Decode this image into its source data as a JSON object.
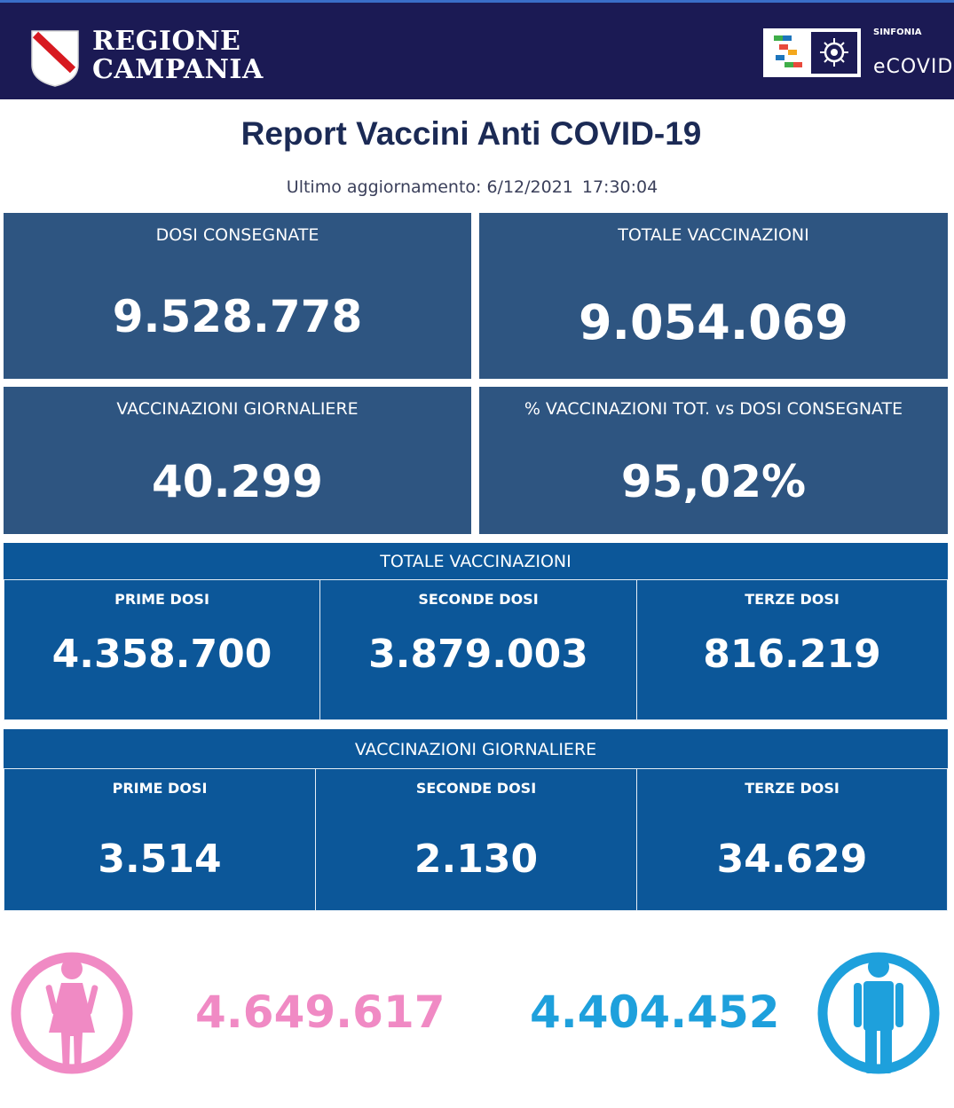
{
  "header": {
    "region_line1": "REGIONE",
    "region_line2": "CAMPANIA",
    "sinfonia": "SINFONIA",
    "ecovid": "eCOVID"
  },
  "title": "Report Vaccini Anti COVID-19",
  "updated": {
    "label": "Ultimo aggiornamento: 6/12/2021",
    "time": "17:30:04"
  },
  "cards": {
    "dosi_consegnate": {
      "label": "DOSI  CONSEGNATE",
      "value": "9.528.778"
    },
    "totale_vaccinazioni": {
      "label": "TOTALE VACCINAZIONI",
      "value": "9.054.069"
    },
    "vaccinazioni_giornaliere": {
      "label": "VACCINAZIONI GIORNALIERE",
      "value": "40.299"
    },
    "percentuale": {
      "label": "% VACCINAZIONI TOT. vs DOSI CONSEGNATE",
      "value": "95,02%"
    }
  },
  "totale": {
    "title": "TOTALE VACCINAZIONI",
    "prime": {
      "label": "PRIME DOSI",
      "value": "4.358.700"
    },
    "seconde": {
      "label": "SECONDE DOSI",
      "value": "3.879.003"
    },
    "terze": {
      "label": "TERZE DOSI",
      "value": "816.219"
    }
  },
  "giornaliere": {
    "title": "VACCINAZIONI GIORNALIERE",
    "prime": {
      "label": "PRIME DOSI",
      "value": "3.514"
    },
    "seconde": {
      "label": "SECONDE DOSI",
      "value": "2.130"
    },
    "terze": {
      "label": "TERZE DOSI",
      "value": "34.629"
    }
  },
  "gender": {
    "female": {
      "value": "4.649.617",
      "icon": "female-person-icon",
      "color": "#f08ac4"
    },
    "male": {
      "value": "4.404.452",
      "icon": "male-person-icon",
      "color": "#1ea0dc"
    }
  },
  "colors": {
    "header": "#1b1a54",
    "card": "#2e5581",
    "band": "#0c5799",
    "title": "#1b2a55"
  }
}
